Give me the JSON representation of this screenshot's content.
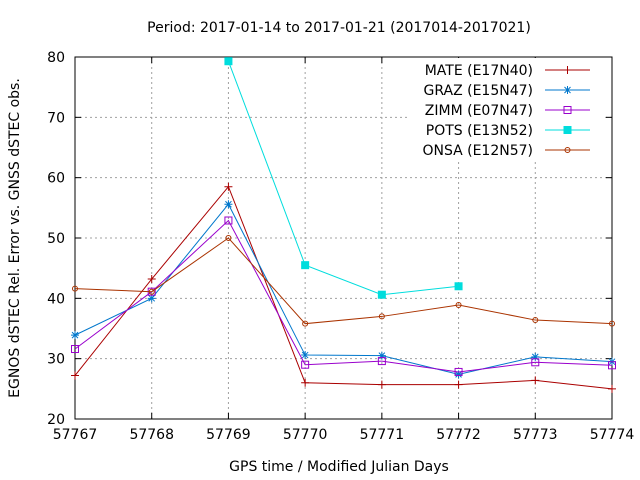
{
  "chart_data": {
    "type": "line",
    "title": "Period: 2017-01-14 to 2017-01-21 (2017014-2017021)",
    "xlabel": "GPS time / Modified Julian Days",
    "ylabel": "EGNOS dSTEC Rel. Error vs. GNSS dSTEC obs.",
    "xlim": [
      57767,
      57774
    ],
    "ylim": [
      20,
      80
    ],
    "xticks": [
      57767,
      57768,
      57769,
      57770,
      57771,
      57772,
      57773,
      57774
    ],
    "yticks": [
      20,
      30,
      40,
      50,
      60,
      70,
      80
    ],
    "grid": true,
    "legend_position": "top-right",
    "series": [
      {
        "name": "MATE (E17N40)",
        "color": "#aa0000",
        "marker": "plus",
        "x": [
          57767,
          57768,
          57769,
          57770,
          57771,
          57772,
          57773,
          57774
        ],
        "values": [
          27.2,
          43.2,
          58.5,
          26.0,
          25.7,
          25.7,
          26.4,
          25.0
        ]
      },
      {
        "name": "GRAZ (E15N47)",
        "color": "#0077cc",
        "marker": "star",
        "x": [
          57767,
          57768,
          57769,
          57770,
          57771,
          57772,
          57773,
          57774
        ],
        "values": [
          33.9,
          40.0,
          55.6,
          30.6,
          30.5,
          27.4,
          30.3,
          29.5
        ]
      },
      {
        "name": "ZIMM (E07N47)",
        "color": "#9900cc",
        "marker": "square-open",
        "x": [
          57767,
          57768,
          57769,
          57770,
          57771,
          57772,
          57773,
          57774
        ],
        "values": [
          31.6,
          41.1,
          52.9,
          29.0,
          29.6,
          27.8,
          29.4,
          28.9
        ]
      },
      {
        "name": "POTS (E13N52)",
        "color": "#00dddd",
        "marker": "square-filled",
        "x": [
          57769,
          57770,
          57771,
          57772
        ],
        "values": [
          79.3,
          45.5,
          40.6,
          42.0
        ]
      },
      {
        "name": "ONSA (E12N57)",
        "color": "#aa3300",
        "marker": "circle-open",
        "x": [
          57767,
          57768,
          57769,
          57770,
          57771,
          57772,
          57773,
          57774
        ],
        "values": [
          41.6,
          41.1,
          50.0,
          35.8,
          37.0,
          38.9,
          36.4,
          35.8
        ]
      }
    ]
  }
}
